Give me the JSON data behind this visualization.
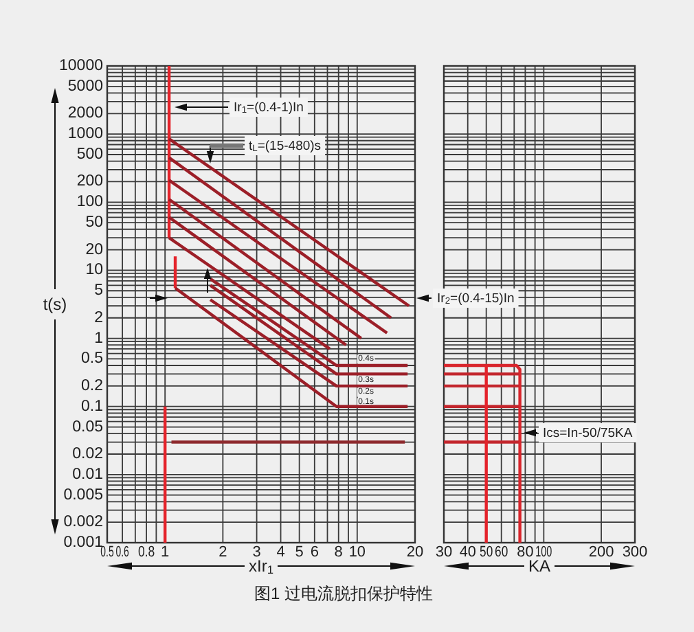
{
  "chart_data": [
    {
      "type": "line",
      "xlabel": "xIr$_{1}$",
      "ylabel": "t(s)",
      "log": "xy",
      "grid": true,
      "xlim": [
        0.5,
        20
      ],
      "ylim": [
        0.001,
        10000
      ],
      "xticks": [
        0.5,
        0.6,
        0.8,
        1,
        2,
        3,
        4,
        5,
        6,
        8,
        10,
        20
      ],
      "yticks": [
        0.001,
        0.002,
        0.005,
        0.01,
        0.02,
        0.05,
        0.1,
        0.2,
        0.5,
        1,
        2,
        5,
        10,
        20,
        50,
        100,
        200,
        500,
        1000,
        2000,
        5000,
        10000
      ],
      "series": [
        {
          "color": "#e4232b",
          "x": [
            1.05,
            1.05
          ],
          "values": [
            10000,
            30
          ]
        },
        {
          "color": "#9c1f28",
          "x": [
            1.05,
            7.2
          ],
          "values": [
            30,
            0.7
          ]
        },
        {
          "color": "#9c1f28",
          "x": [
            1.05,
            18.6
          ],
          "values": [
            850,
            3
          ]
        },
        {
          "color": "#9c1f28",
          "x": [
            1.05,
            15
          ],
          "values": [
            450,
            2
          ]
        },
        {
          "color": "#9c1f28",
          "x": [
            1.05,
            14.3
          ],
          "values": [
            210,
            1.2
          ]
        },
        {
          "color": "#9c1f28",
          "x": [
            1.05,
            10.5
          ],
          "values": [
            110,
            1
          ]
        },
        {
          "color": "#9c1f28",
          "x": [
            1.05,
            8.75
          ],
          "values": [
            60,
            0.8
          ]
        },
        {
          "color": "#9c1f28",
          "x": [
            1.72,
            7.8,
            18.3
          ],
          "values": [
            7.5,
            0.4,
            0.4
          ]
        },
        {
          "color": "#9c1f28",
          "x": [
            1.72,
            7.8,
            18.3
          ],
          "values": [
            6,
            0.3,
            0.3
          ]
        },
        {
          "color": "#9c1f28",
          "x": [
            1.72,
            7.8,
            18.3
          ],
          "values": [
            3.7,
            0.2,
            0.2
          ]
        },
        {
          "color": "#e4232b",
          "x": [
            1.13,
            1.13
          ],
          "values": [
            16,
            5.5
          ]
        },
        {
          "color": "#9c1f28",
          "x": [
            1.13,
            7.8,
            18.3
          ],
          "values": [
            5.5,
            0.1,
            0.1
          ]
        },
        {
          "color": "#e4232b",
          "x": [
            1,
            1
          ],
          "values": [
            0.1,
            0.001
          ]
        },
        {
          "color": "#8e2a2e",
          "x": [
            1.08,
            17.7
          ],
          "values": [
            0.03,
            0.03
          ]
        }
      ],
      "annotations": [
        "Ir$_{1}$=(0.4-1)In",
        "t$_{L}$=(15-480)s",
        "Ir$_{2}$=(0.4-15)In",
        "0.4s",
        "0.3s",
        "0.2s",
        "0.1s",
        "图1 过电流脱扣保护特性"
      ]
    },
    {
      "type": "line",
      "xlabel": "KA",
      "log": "xy",
      "grid": true,
      "tick_labels": "x",
      "xlim": [
        30,
        300
      ],
      "ylim": [
        0.001,
        10000
      ],
      "xticks": [
        30,
        40,
        50,
        60,
        80,
        100,
        200,
        300
      ],
      "yticks": [
        0.001,
        0.002,
        0.005,
        0.01,
        0.02,
        0.05,
        0.1,
        0.2,
        0.5,
        1,
        2,
        5,
        10,
        20,
        50,
        100,
        200,
        500,
        1000,
        2000,
        5000,
        10000
      ],
      "series": [
        {
          "color": "#d9252c",
          "x": [
            30,
            72,
            75,
            75
          ],
          "values": [
            0.4,
            0.4,
            0.35,
            0.001
          ]
        },
        {
          "color": "#c3262d",
          "x": [
            30,
            74
          ],
          "values": [
            0.3,
            0.3
          ]
        },
        {
          "color": "#c3262d",
          "x": [
            30,
            74
          ],
          "values": [
            0.2,
            0.2
          ]
        },
        {
          "color": "#c3262d",
          "x": [
            30,
            74
          ],
          "values": [
            0.1,
            0.1
          ]
        },
        {
          "color": "#c3262d",
          "x": [
            30,
            74
          ],
          "values": [
            0.03,
            0.03
          ]
        },
        {
          "color": "#e4232b",
          "x": [
            50,
            50
          ],
          "values": [
            0.4,
            0.001
          ]
        }
      ],
      "annotations": [
        "Ics=In-50/75KA"
      ]
    }
  ]
}
